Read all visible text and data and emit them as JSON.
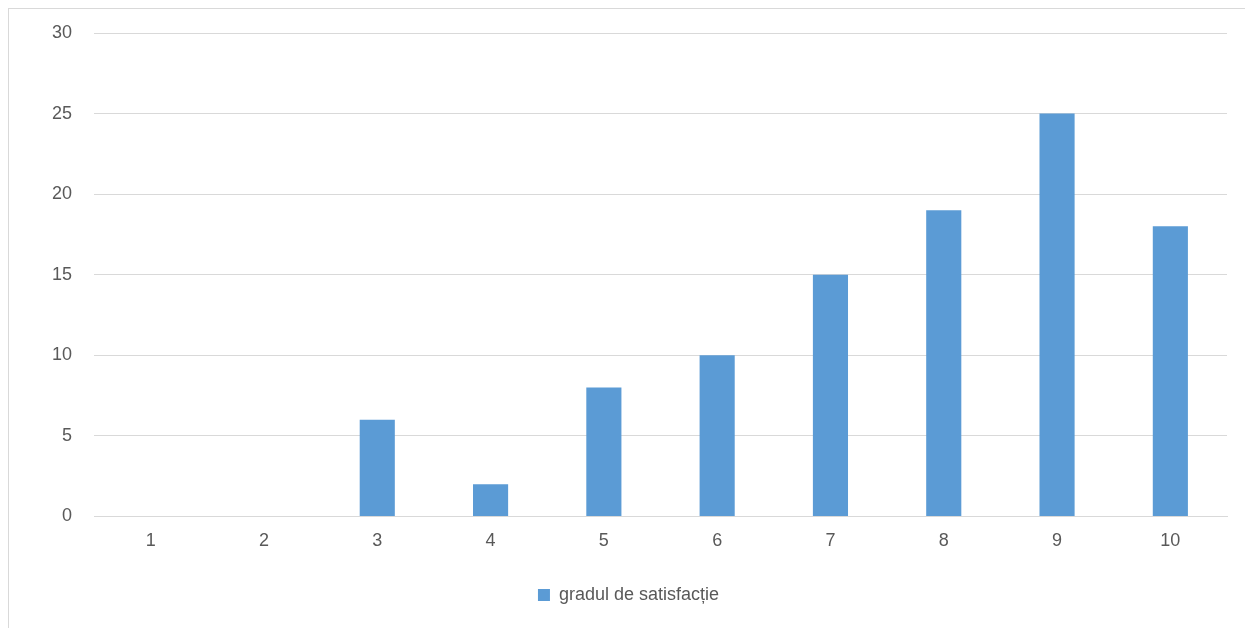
{
  "chart_data": {
    "type": "bar",
    "categories": [
      "1",
      "2",
      "3",
      "4",
      "5",
      "6",
      "7",
      "8",
      "9",
      "10"
    ],
    "series": [
      {
        "name": "gradul de satisfacție",
        "color": "#5b9bd5",
        "values": [
          0,
          0,
          6,
          2,
          8,
          10,
          15,
          19,
          25,
          18
        ]
      }
    ],
    "ylim": [
      0,
      30
    ],
    "yticks": [
      0,
      5,
      10,
      15,
      20,
      25,
      30
    ],
    "grid": "y",
    "legend": "bottom"
  }
}
